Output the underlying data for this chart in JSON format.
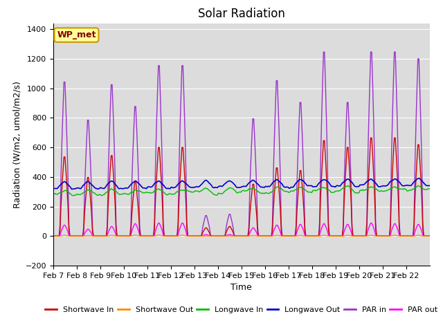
{
  "title": "Solar Radiation",
  "xlabel": "Time",
  "ylabel": "Radiation (W/m2, umol/m2/s)",
  "ylim": [
    -200,
    1440
  ],
  "yticks": [
    -200,
    0,
    200,
    400,
    600,
    800,
    1000,
    1200,
    1400
  ],
  "num_days": 16,
  "label": "WP_met",
  "bg_color": "#dcdcdc",
  "lines": {
    "shortwave_in": {
      "color": "#cc0000",
      "label": "Shortwave In",
      "lw": 1.0
    },
    "shortwave_out": {
      "color": "#ff8800",
      "label": "Shortwave Out",
      "lw": 1.0
    },
    "longwave_in": {
      "color": "#00bb00",
      "label": "Longwave In",
      "lw": 1.0
    },
    "longwave_out": {
      "color": "#0000cc",
      "label": "Longwave Out",
      "lw": 1.2
    },
    "par_in": {
      "color": "#9933cc",
      "label": "PAR in",
      "lw": 1.0
    },
    "par_out": {
      "color": "#ff00ff",
      "label": "PAR out",
      "lw": 1.0
    }
  },
  "xtick_labels": [
    "Feb 7",
    "Feb 8",
    "Feb 9",
    "Feb 10",
    "Feb 11",
    "Feb 12",
    "Feb 13",
    "Feb 14",
    "Feb 15",
    "Feb 16",
    "Feb 17",
    "Feb 18",
    "Feb 19",
    "Feb 20",
    "Feb 21",
    "Feb 22"
  ],
  "title_fontsize": 12,
  "axis_label_fontsize": 9,
  "tick_fontsize": 8
}
